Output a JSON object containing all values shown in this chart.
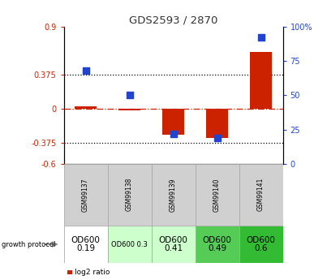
{
  "title": "GDS2593 / 2870",
  "samples": [
    "GSM99137",
    "GSM99138",
    "GSM99139",
    "GSM99140",
    "GSM99141"
  ],
  "log2_ratio": [
    0.03,
    -0.02,
    -0.28,
    -0.32,
    0.62
  ],
  "percentile_rank": [
    68,
    50,
    22,
    19,
    92
  ],
  "ylim_left": [
    -0.6,
    0.9
  ],
  "ylim_right": [
    0,
    100
  ],
  "bar_color": "#cc2200",
  "dot_color": "#2244cc",
  "growth_protocol_labels": [
    "OD600\n0.19",
    "OD600 0.3",
    "OD600\n0.41",
    "OD600\n0.49",
    "OD600\n0.6"
  ],
  "cell_colors": [
    "#ffffff",
    "#ccffcc",
    "#ccffcc",
    "#55cc55",
    "#33bb33"
  ],
  "cell_fontsize": [
    7.5,
    6.0,
    7.5,
    7.5,
    7.5
  ],
  "title_color": "#333333",
  "left_yticks": [
    0.9,
    0.375,
    0.0,
    -0.375,
    -0.6
  ],
  "left_ytick_labels": [
    "0.9",
    "0.375",
    "0",
    "-0.375",
    "-0.6"
  ],
  "right_yticks": [
    100,
    75,
    50,
    25,
    0
  ],
  "right_ytick_labels": [
    "100%",
    "75",
    "50",
    "25",
    "0"
  ],
  "left_tick_color": "#cc2200",
  "right_tick_color": "#2244cc",
  "bar_width": 0.5,
  "dot_size": 40
}
